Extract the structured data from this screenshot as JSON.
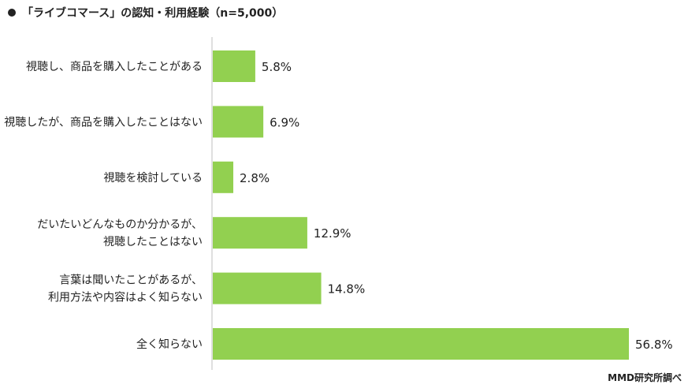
{
  "chart_data": {
    "type": "bar",
    "orientation": "horizontal",
    "title": "「ライブコマース」の認知・利用経験（n=5,000）",
    "categories": [
      [
        "視聴し、商品を購入したことがある"
      ],
      [
        "視聴したが、商品を購入したことはない"
      ],
      [
        "視聴を検討している"
      ],
      [
        "だいたいどんなものか分かるが、",
        "視聴したことはない"
      ],
      [
        "言葉は聞いたことがあるが、",
        "利用方法や内容はよく知らない"
      ],
      [
        "全く知らない"
      ]
    ],
    "values": [
      5.8,
      6.9,
      2.8,
      12.9,
      14.8,
      56.8
    ],
    "value_labels": [
      "5.8%",
      "6.9%",
      "2.8%",
      "12.9%",
      "14.8%",
      "56.8%"
    ],
    "xlim": [
      0,
      56.8
    ],
    "bar_color": "#92d050",
    "axis_color": "#bfbfbf",
    "grid": false,
    "legend": "none"
  },
  "source": "MMD研究所調べ"
}
